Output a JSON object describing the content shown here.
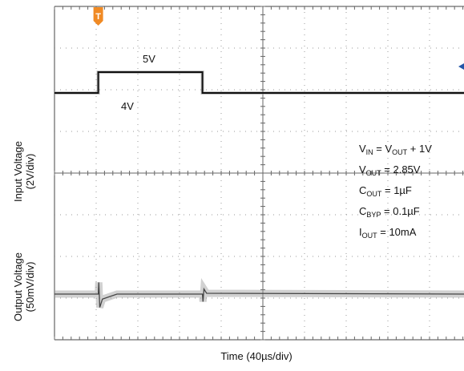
{
  "chart_data": {
    "type": "line",
    "title": "",
    "xlabel": "Time (40µs/div)",
    "ylabels": [
      {
        "line1": "Input Voltage",
        "line2": "(2V/div)"
      },
      {
        "line1": "Output Voltage",
        "line2": "(50mV/div)"
      }
    ],
    "x_divisions": 10,
    "y_divisions": 8,
    "xlim_us": [
      0,
      400
    ],
    "series": [
      {
        "trace": "input",
        "x_us": [
          0,
          42,
          42,
          142,
          142,
          400
        ],
        "y_V": [
          4,
          4,
          5,
          5,
          4,
          4
        ],
        "level_labels": {
          "high": "5V",
          "low": "4V"
        }
      },
      {
        "trace": "output",
        "x_us": [
          0,
          42,
          42.5,
          43.5,
          46,
          60,
          142,
          142.5,
          143.5,
          146,
          400
        ],
        "y_mV_deviation": [
          0,
          0,
          14,
          -16,
          -6,
          0,
          0,
          -9,
          6,
          1,
          0
        ]
      }
    ],
    "annotations": [
      {
        "main": "V",
        "sub": "IN",
        "rest": " = V",
        "sub2": "OUT",
        "rest2": " + 1V"
      },
      {
        "main": "V",
        "sub": "OUT",
        "rest": " = 2.85V"
      },
      {
        "main": "C",
        "sub": "OUT",
        "rest": " = 1µF"
      },
      {
        "main": "C",
        "sub": "BYP",
        "rest": " = 0.1µF"
      },
      {
        "main": "I",
        "sub": "OUT",
        "rest": " = 10mA"
      }
    ],
    "trigger_marker": "T",
    "colors": {
      "trace": "#111111",
      "noise": "#9a9a9a",
      "grid": "#999999",
      "trigger": "#f08a24",
      "marker": "#2456a8"
    }
  }
}
